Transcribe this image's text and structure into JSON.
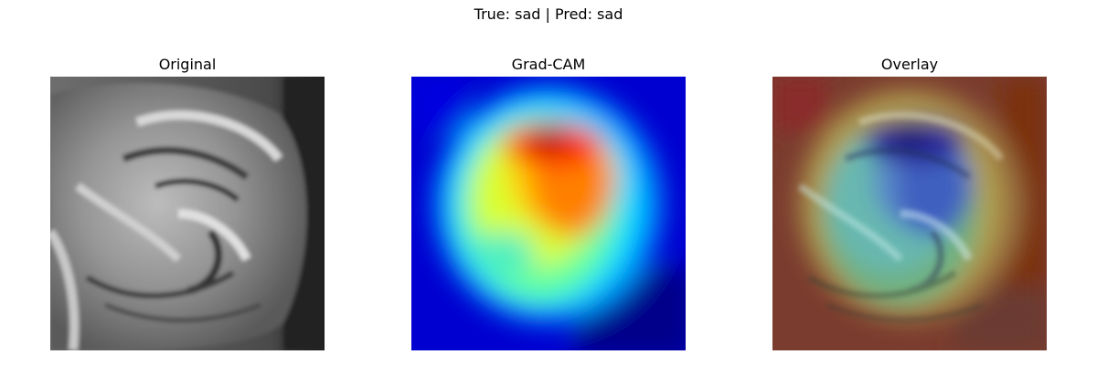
{
  "figure": {
    "suptitle": "True: sad | Pred: sad",
    "panels": [
      {
        "title": "Original"
      },
      {
        "title": "Grad-CAM"
      },
      {
        "title": "Overlay"
      }
    ]
  }
}
